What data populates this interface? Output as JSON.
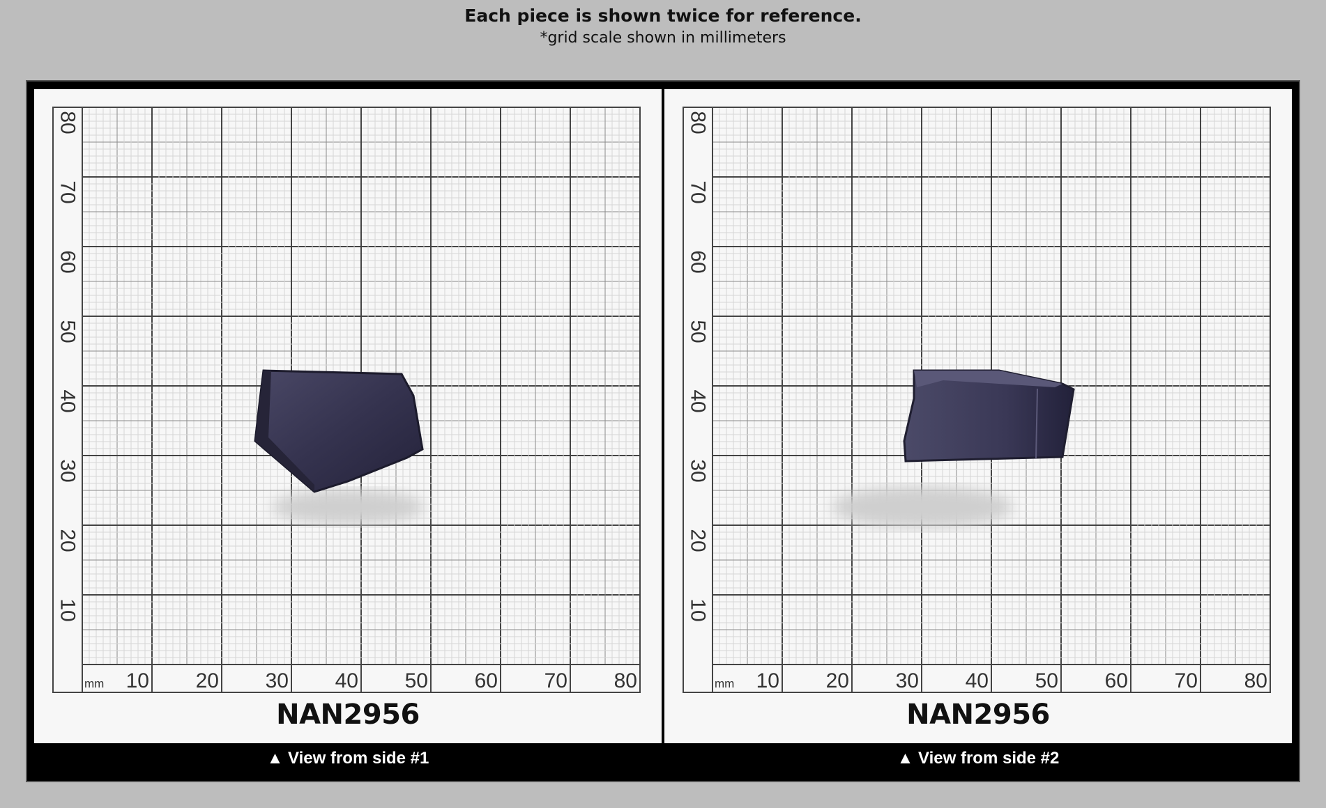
{
  "header": {
    "title": "Each piece is shown twice for reference.",
    "subtitle": "*grid scale shown in millimeters"
  },
  "grid": {
    "unit": "mm",
    "x_labels": [
      "10",
      "20",
      "30",
      "40",
      "50",
      "60",
      "70",
      "80"
    ],
    "y_labels": [
      "80",
      "70",
      "60",
      "50",
      "40",
      "30",
      "20",
      "10"
    ]
  },
  "panels": [
    {
      "code": "NAN2956",
      "caption": "▲ View from side #1"
    },
    {
      "code": "NAN2956",
      "caption": "▲ View from side #2"
    }
  ],
  "colors": {
    "specimen": "#2f2d4a",
    "background": "#bdbdbd",
    "frame": "#000000"
  }
}
